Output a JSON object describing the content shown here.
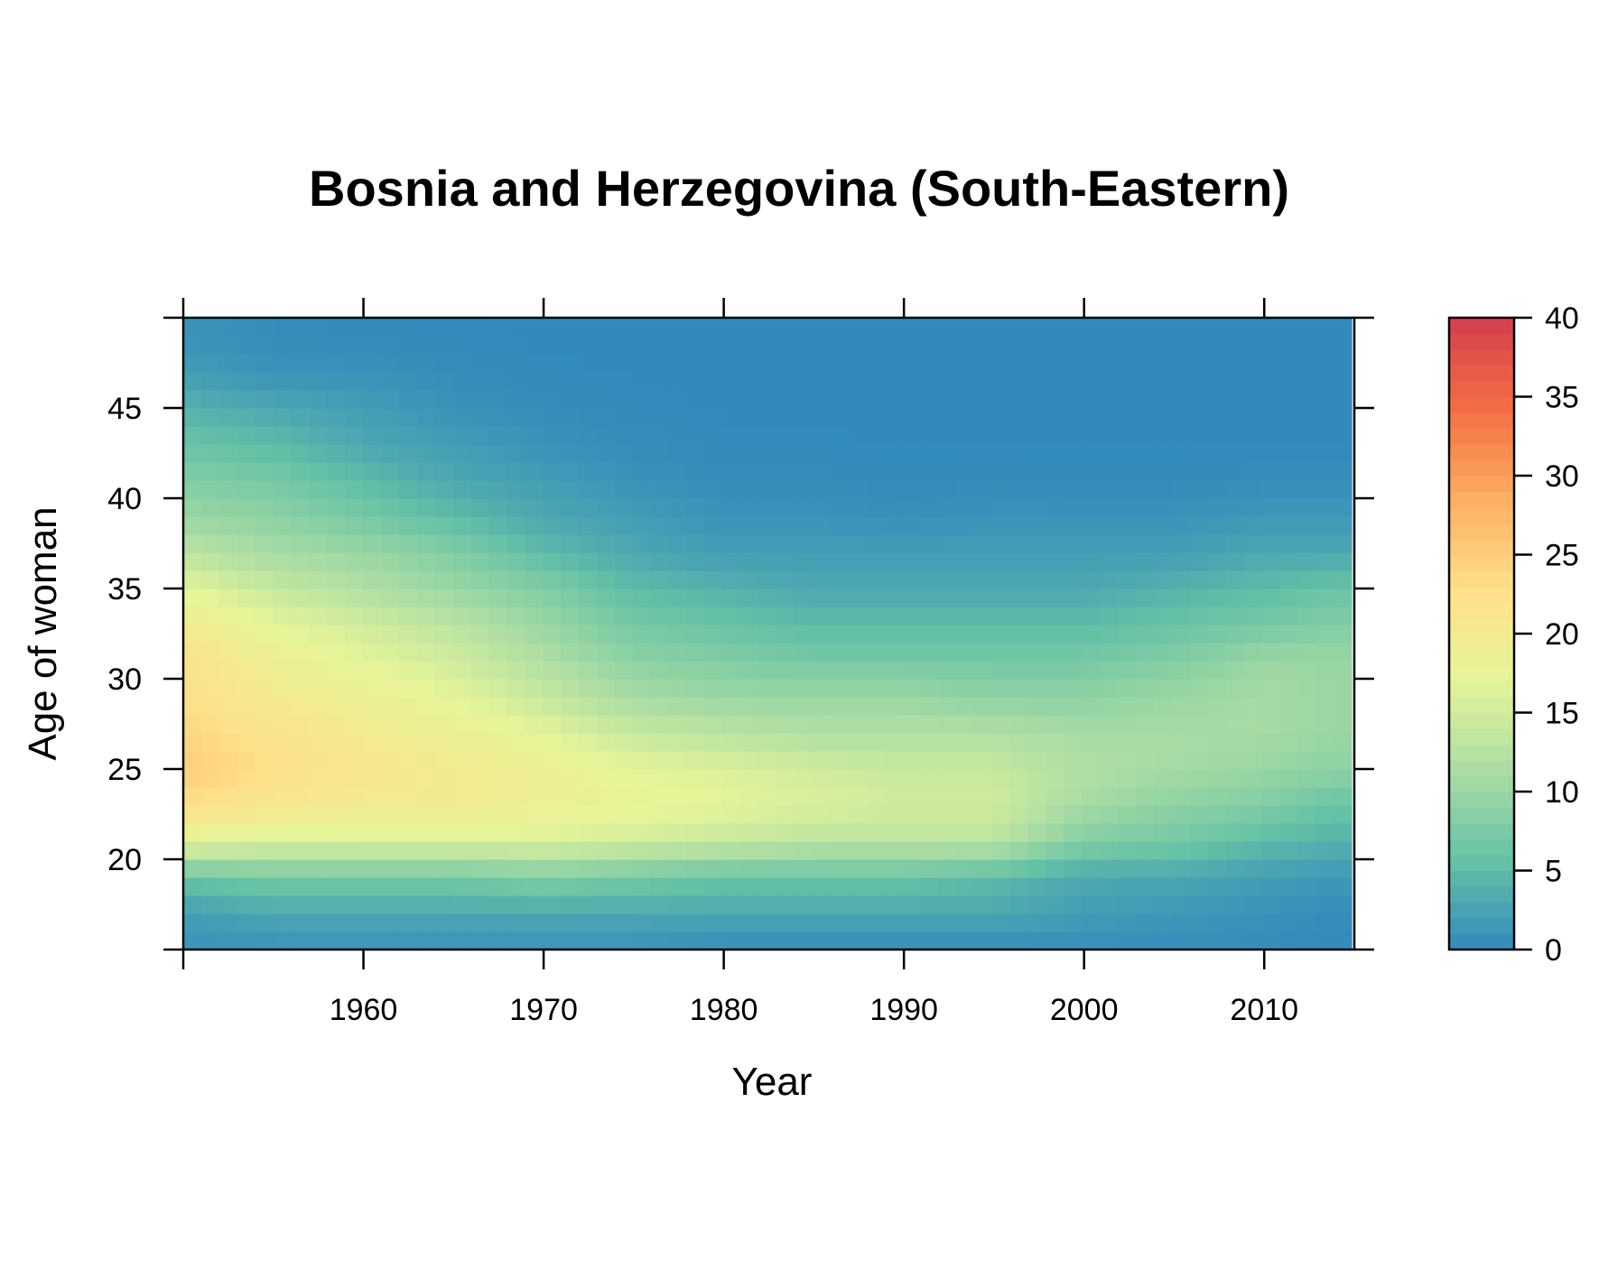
{
  "chart_data": {
    "type": "heatmap",
    "title": "Bosnia and Herzegovina (South-Eastern)",
    "xlabel": "Year",
    "ylabel": "Age of woman",
    "xlim": [
      1950,
      2015
    ],
    "ylim": [
      15,
      50
    ],
    "x_ticks": [
      1960,
      1970,
      1980,
      1990,
      2000,
      2010
    ],
    "y_ticks": [
      20,
      25,
      30,
      35,
      40,
      45
    ],
    "colorbar": {
      "min": 0,
      "max": 40,
      "ticks": [
        0,
        5,
        10,
        15,
        20,
        25,
        30,
        35,
        40
      ]
    },
    "palette": [
      "#3288bd",
      "#66c2a5",
      "#abdda4",
      "#e6f598",
      "#fee08b",
      "#fdae61",
      "#f46d43",
      "#d53e4f"
    ],
    "years": [
      1950,
      1955,
      1960,
      1965,
      1970,
      1975,
      1980,
      1985,
      1990,
      1995,
      2000,
      2005,
      2010,
      2014
    ],
    "ages": [
      15,
      17,
      19,
      21,
      23,
      25,
      27,
      29,
      31,
      33,
      35,
      37,
      39,
      41,
      43,
      45,
      47,
      49
    ],
    "values": [
      [
        1,
        2,
        6,
        17,
        23,
        25,
        24,
        23,
        22,
        20,
        17,
        13,
        10,
        8,
        6,
        4,
        2,
        1
      ],
      [
        1,
        3,
        7,
        16,
        21,
        23,
        22,
        20,
        19,
        17,
        14,
        11,
        9,
        7,
        5,
        3,
        1,
        0.5
      ],
      [
        1,
        3,
        7,
        16,
        20,
        21,
        20,
        19,
        17,
        15,
        12,
        10,
        7,
        5,
        3,
        2,
        1,
        0.3
      ],
      [
        1,
        3,
        7,
        16,
        20,
        20,
        19,
        17,
        15,
        13,
        10,
        8,
        5,
        3,
        2,
        1,
        0.5,
        0.2
      ],
      [
        1,
        3,
        8,
        16,
        19,
        19,
        17,
        14,
        12,
        10,
        8,
        5,
        3,
        2,
        1,
        0.5,
        0.2,
        0.1
      ],
      [
        1,
        3,
        7,
        15,
        18,
        17,
        14,
        11,
        9,
        7,
        5,
        3,
        2,
        1,
        0.5,
        0.3,
        0.1,
        0.1
      ],
      [
        0.5,
        3,
        6,
        14,
        17,
        16,
        13,
        10,
        8,
        6,
        4,
        2,
        1,
        0.5,
        0.3,
        0.1,
        0.1,
        0.1
      ],
      [
        0.5,
        3,
        6,
        13,
        16,
        15,
        12,
        10,
        7,
        5,
        3,
        2,
        1,
        0.5,
        0.2,
        0.1,
        0.1,
        0.1
      ],
      [
        0.5,
        3,
        6,
        13,
        15,
        14,
        12,
        10,
        7,
        5,
        3,
        2,
        0.8,
        0.3,
        0.1,
        0.1,
        0.1,
        0.1
      ],
      [
        0.5,
        3,
        5,
        13,
        15,
        14,
        12,
        9,
        7,
        5,
        3,
        2,
        1,
        0.4,
        0.1,
        0.1,
        0.1,
        0.1
      ],
      [
        0.5,
        2,
        3,
        8,
        11,
        12,
        11,
        9,
        7,
        5,
        3,
        2,
        1,
        0.3,
        0.1,
        0.1,
        0.1,
        0.1
      ],
      [
        0.5,
        1.5,
        3,
        7,
        9,
        11,
        11,
        10,
        8,
        6,
        4,
        2,
        1,
        0.3,
        0.1,
        0.1,
        0.1,
        0.1
      ],
      [
        0.5,
        1,
        2,
        5,
        8,
        10,
        11,
        11,
        10,
        7,
        5,
        3,
        1.5,
        0.5,
        0.1,
        0.1,
        0.1,
        0.1
      ],
      [
        0.2,
        0.5,
        1.5,
        4,
        6,
        9,
        10,
        10,
        10,
        8,
        6,
        3,
        1.5,
        0.5,
        0.1,
        0.1,
        0.1,
        0.1
      ]
    ]
  }
}
